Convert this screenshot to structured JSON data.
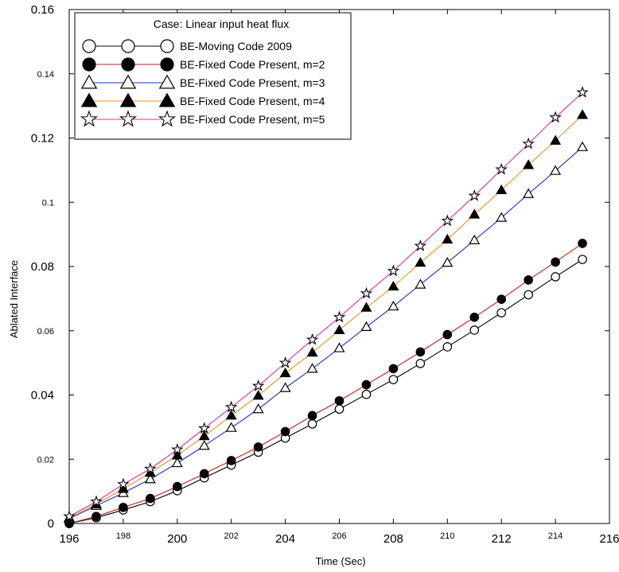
{
  "chart_data": {
    "type": "line",
    "xlabel": "Time (Sec)",
    "ylabel": "Ablated Interface",
    "xlim": [
      196,
      216
    ],
    "ylim": [
      0,
      0.16
    ],
    "x_ticks": [
      196,
      198,
      200,
      202,
      204,
      206,
      208,
      210,
      212,
      214,
      216
    ],
    "x_tick_labels": [
      "196",
      "198",
      "200",
      "202",
      "204",
      "206",
      "208",
      "210",
      "212",
      "214",
      "216"
    ],
    "y_ticks": [
      0,
      0.02,
      0.04,
      0.06,
      0.08,
      0.1,
      0.12,
      0.14,
      0.16
    ],
    "y_tick_labels": [
      "0",
      "0.02",
      "0.04",
      "0.06",
      "0.08",
      "0.1",
      "0.12",
      "0.14",
      "0.16"
    ],
    "grid": false,
    "legend_title": "Case: Linear input heat flux",
    "legend_position": "top-left",
    "x": [
      196,
      197,
      198,
      199,
      200,
      201,
      202,
      203,
      204,
      205,
      206,
      207,
      208,
      209,
      210,
      211,
      212,
      213,
      214,
      215
    ],
    "series": [
      {
        "name": "BE-Moving Code 2009",
        "marker": "open-circle",
        "line_color": "#000000",
        "values": [
          0.0,
          0.0018,
          0.0042,
          0.0068,
          0.0102,
          0.0142,
          0.0182,
          0.0222,
          0.0266,
          0.031,
          0.0356,
          0.0402,
          0.0448,
          0.0498,
          0.055,
          0.0602,
          0.0656,
          0.0712,
          0.0768,
          0.0822
        ]
      },
      {
        "name": "BE-Fixed Code Present, m=2",
        "marker": "filled-circle",
        "line_color": "#d01818",
        "values": [
          0.0,
          0.0022,
          0.005,
          0.0078,
          0.0115,
          0.0155,
          0.0196,
          0.0238,
          0.0286,
          0.0336,
          0.0382,
          0.0432,
          0.0482,
          0.0534,
          0.0588,
          0.0642,
          0.0698,
          0.0758,
          0.0814,
          0.0872
        ]
      },
      {
        "name": "BE-Fixed Code Present, m=3",
        "marker": "open-triangle",
        "line_color": "#1a2ee0",
        "values": [
          0.0015,
          0.0055,
          0.0095,
          0.0138,
          0.0188,
          0.0242,
          0.0298,
          0.0356,
          0.0422,
          0.0482,
          0.0546,
          0.0612,
          0.0676,
          0.0744,
          0.0812,
          0.0882,
          0.0952,
          0.1026,
          0.1098,
          0.1172
        ]
      },
      {
        "name": "BE-Fixed Code Present, m=4",
        "marker": "filled-triangle",
        "line_color": "#f09020",
        "values": [
          0.0018,
          0.006,
          0.0108,
          0.0158,
          0.0212,
          0.0272,
          0.0336,
          0.0398,
          0.0468,
          0.0532,
          0.0602,
          0.0672,
          0.0738,
          0.0812,
          0.0884,
          0.0962,
          0.1038,
          0.1116,
          0.1192,
          0.1272
        ]
      },
      {
        "name": "BE-Fixed Code Present, m=5",
        "marker": "open-star",
        "line_color": "#e0309a",
        "values": [
          0.0022,
          0.0068,
          0.0122,
          0.017,
          0.023,
          0.0296,
          0.0362,
          0.0428,
          0.05,
          0.0572,
          0.0642,
          0.0716,
          0.0786,
          0.0864,
          0.0942,
          0.102,
          0.1102,
          0.1182,
          0.1264,
          0.1342
        ]
      }
    ]
  }
}
